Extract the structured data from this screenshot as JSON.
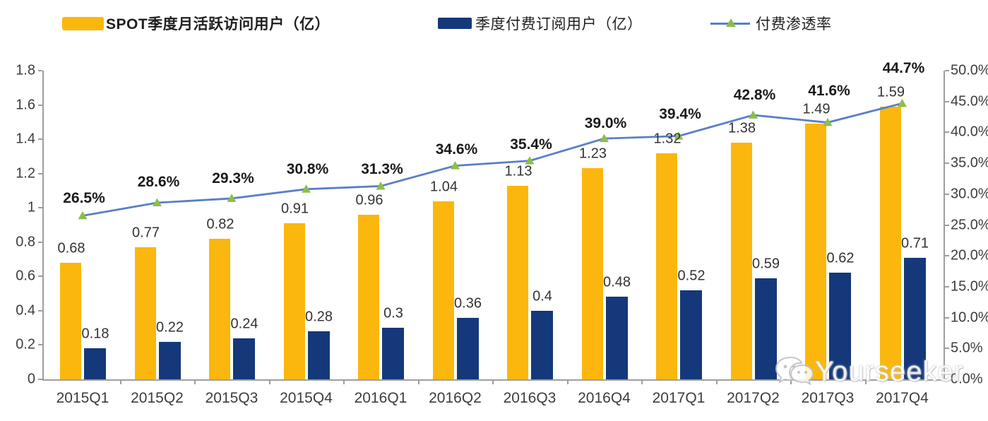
{
  "legend": {
    "items": [
      {
        "label": "SPOT季度月活跃访问用户（亿）",
        "type": "bar",
        "color": "#FBB70D",
        "bold": true
      },
      {
        "label": "季度付费订阅用户（亿）",
        "type": "bar",
        "color": "#14387A",
        "bold": false
      },
      {
        "label": "付费渗透率",
        "type": "line",
        "color": "#5B7FC7",
        "marker_color": "#8CBE4A",
        "bold": false
      }
    ]
  },
  "watermark": {
    "text": "Yourseeker",
    "icon": "wechat-icon"
  },
  "colors": {
    "mau_bar": "#FBB70D",
    "sub_bar": "#14387A",
    "line": "#5B7FC7",
    "marker": "#8CBE4A",
    "axis": "#9e9e9e",
    "label_text": "#333333"
  },
  "chart_data": {
    "type": "bar",
    "subtype": "clustered-bars-with-line-combo",
    "title": "",
    "categories": [
      "2015Q1",
      "2015Q2",
      "2015Q3",
      "2015Q4",
      "2016Q1",
      "2016Q2",
      "2016Q3",
      "2016Q4",
      "2017Q1",
      "2017Q2",
      "2017Q3",
      "2017Q4"
    ],
    "series": [
      {
        "name": "SPOT季度月活跃访问用户（亿）",
        "type": "bar",
        "axis": "left",
        "color": "#FBB70D",
        "values": [
          0.68,
          0.77,
          0.82,
          0.91,
          0.96,
          1.04,
          1.13,
          1.23,
          1.32,
          1.38,
          1.49,
          1.59
        ],
        "labels": [
          "0.68",
          "0.77",
          "0.82",
          "0.91",
          "0.96",
          "1.04",
          "1.13",
          "1.23",
          "1.32",
          "1.38",
          "1.49",
          "1.59"
        ]
      },
      {
        "name": "季度付费订阅用户（亿）",
        "type": "bar",
        "axis": "left",
        "color": "#14387A",
        "values": [
          0.18,
          0.22,
          0.24,
          0.28,
          0.3,
          0.36,
          0.4,
          0.48,
          0.52,
          0.59,
          0.62,
          0.71
        ],
        "labels": [
          "0.18",
          "0.22",
          "0.24",
          "0.28",
          "0.3",
          "0.36",
          "0.4",
          "0.48",
          "0.52",
          "0.59",
          "0.62",
          "0.71"
        ]
      },
      {
        "name": "付费渗透率",
        "type": "line",
        "axis": "right",
        "color": "#5B7FC7",
        "marker": "triangle",
        "marker_color": "#8CBE4A",
        "values": [
          26.5,
          28.6,
          29.3,
          30.8,
          31.3,
          34.6,
          35.4,
          39.0,
          39.4,
          42.8,
          41.6,
          44.7
        ],
        "labels": [
          "26.5%",
          "28.6%",
          "29.3%",
          "30.8%",
          "31.3%",
          "34.6%",
          "35.4%",
          "39.0%",
          "39.4%",
          "42.8%",
          "41.6%",
          "44.7%"
        ]
      }
    ],
    "left_axis": {
      "min": 0,
      "max": 1.8,
      "step": 0.2,
      "tick_labels": [
        "0",
        "0.2",
        "0.4",
        "0.6",
        "0.8",
        "1",
        "1.2",
        "1.4",
        "1.6",
        "1.8"
      ]
    },
    "right_axis": {
      "min": 0,
      "max": 50,
      "step": 5,
      "tick_labels": [
        "0.0%",
        "5.0%",
        "10.0%",
        "15.0%",
        "20.0%",
        "25.0%",
        "30.0%",
        "35.0%",
        "40.0%",
        "45.0%",
        "50.0%"
      ]
    },
    "grid": false,
    "legend_position": "top",
    "pct_label_dy": [
      24,
      29,
      28,
      28,
      23,
      23,
      23,
      21,
      31,
      28,
      44,
      49
    ]
  }
}
